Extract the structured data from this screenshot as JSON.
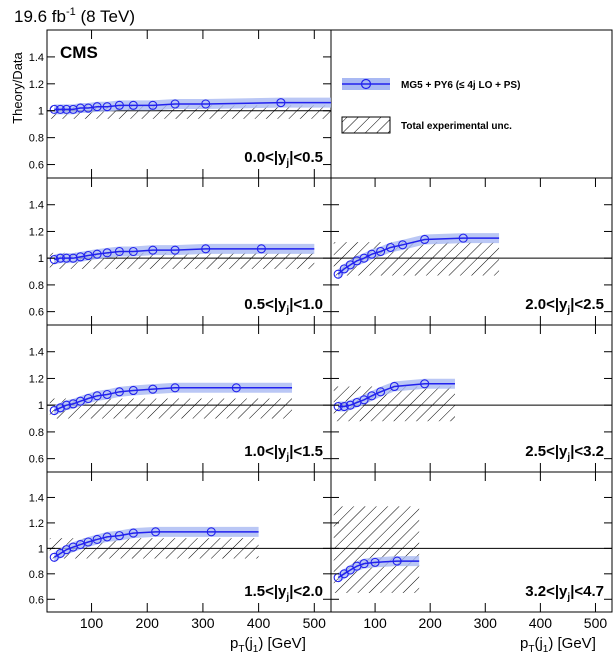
{
  "header": {
    "lumi_text": "19.6 fb",
    "lumi_sup": "-1",
    "lumi_energy": " (8 TeV)",
    "experiment": "CMS"
  },
  "axes": {
    "ylabel": "Theory/Data",
    "xlabel_main": "p",
    "xlabel_sub1": "T",
    "xlabel_mid": "(j",
    "xlabel_sub2": "1",
    "xlabel_end": ") [GeV]",
    "ytick_labels": [
      "1.4",
      "1.2",
      "1",
      "0.8",
      "0.6"
    ],
    "xtick_labels": [
      "100",
      "200",
      "300",
      "400",
      "500"
    ]
  },
  "legend": {
    "entries": [
      {
        "label": "MG5 + PY6 (≤ 4j LO + PS)",
        "kind": "mc"
      },
      {
        "label": "Total experimental unc.",
        "kind": "band"
      }
    ]
  },
  "style": {
    "mc_color": "#2222ee",
    "mc_band": "#a9b9f3",
    "hatch": "#000000"
  },
  "chart_data": {
    "type": "scatter",
    "description_free": true,
    "xlim": [
      20,
      530
    ],
    "ylim": [
      0.5,
      1.6
    ],
    "yticks": [
      0.6,
      0.8,
      1.0,
      1.2,
      1.4
    ],
    "xticks": [
      100,
      200,
      300,
      400,
      500
    ],
    "reference_line": 1.0,
    "series_name": "MG5 + PY6 (≤ 4j LO + PS)",
    "panels": [
      {
        "label": "0.0<|y",
        "sub": "j",
        "tail": "|<0.5",
        "x": [
          33,
          44,
          55,
          67,
          80,
          94,
          110,
          128,
          150,
          175,
          210,
          250,
          305,
          440
        ],
        "y": [
          1.01,
          1.01,
          1.01,
          1.01,
          1.02,
          1.02,
          1.03,
          1.03,
          1.04,
          1.04,
          1.04,
          1.05,
          1.05,
          1.06
        ],
        "x_end": 530,
        "band_lo": 0.94,
        "band_hi": 1.04,
        "band_x_end": 530
      },
      {
        "label": "2.0<|y",
        "sub": "j",
        "tail": "|<2.5",
        "x": [
          33,
          44,
          55,
          67,
          80,
          94,
          110,
          128,
          150,
          190,
          260
        ],
        "y": [
          0.88,
          0.92,
          0.95,
          0.98,
          1.0,
          1.03,
          1.05,
          1.08,
          1.1,
          1.14,
          1.15
        ],
        "x_end": 325,
        "band_lo": 0.87,
        "band_hi": 1.12,
        "band_x_end": 325
      },
      {
        "label": "0.5<|y",
        "sub": "j",
        "tail": "|<1.0",
        "x": [
          33,
          44,
          55,
          67,
          80,
          94,
          110,
          128,
          150,
          175,
          210,
          250,
          305,
          405
        ],
        "y": [
          0.99,
          1.0,
          1.0,
          1.0,
          1.01,
          1.02,
          1.03,
          1.04,
          1.05,
          1.05,
          1.06,
          1.06,
          1.07,
          1.07
        ],
        "x_end": 500,
        "band_lo": 0.92,
        "band_hi": 1.04,
        "band_x_end": 500
      },
      {
        "label": "2.5<|y",
        "sub": "j",
        "tail": "|<3.2",
        "x": [
          33,
          44,
          55,
          67,
          80,
          94,
          110,
          135,
          190
        ],
        "y": [
          0.99,
          0.99,
          1.0,
          1.02,
          1.04,
          1.07,
          1.1,
          1.14,
          1.16
        ],
        "x_end": 245,
        "band_lo": 0.88,
        "band_hi": 1.14,
        "band_x_end": 245
      },
      {
        "label": "1.0<|y",
        "sub": "j",
        "tail": "|<1.5",
        "x": [
          33,
          44,
          55,
          67,
          80,
          94,
          110,
          128,
          150,
          175,
          210,
          250,
          360
        ],
        "y": [
          0.96,
          0.98,
          1.0,
          1.01,
          1.03,
          1.05,
          1.07,
          1.08,
          1.1,
          1.11,
          1.12,
          1.13,
          1.13
        ],
        "x_end": 460,
        "band_lo": 0.9,
        "band_hi": 1.05,
        "band_x_end": 460
      },
      {
        "label": "3.2<|y",
        "sub": "j",
        "tail": "|<4.7",
        "x": [
          33,
          44,
          55,
          67,
          80,
          100,
          140
        ],
        "y": [
          0.77,
          0.8,
          0.83,
          0.86,
          0.88,
          0.89,
          0.9
        ],
        "x_end": 180,
        "band_lo": 0.65,
        "band_hi": 1.33,
        "band_x_end": 180
      },
      {
        "label": "1.5<|y",
        "sub": "j",
        "tail": "|<2.0",
        "x": [
          33,
          44,
          55,
          67,
          80,
          94,
          110,
          128,
          150,
          175,
          215,
          315
        ],
        "y": [
          0.93,
          0.96,
          0.99,
          1.01,
          1.03,
          1.05,
          1.07,
          1.09,
          1.1,
          1.12,
          1.13,
          1.13
        ],
        "x_end": 400,
        "band_lo": 0.92,
        "band_hi": 1.08,
        "band_x_end": 400
      }
    ]
  }
}
